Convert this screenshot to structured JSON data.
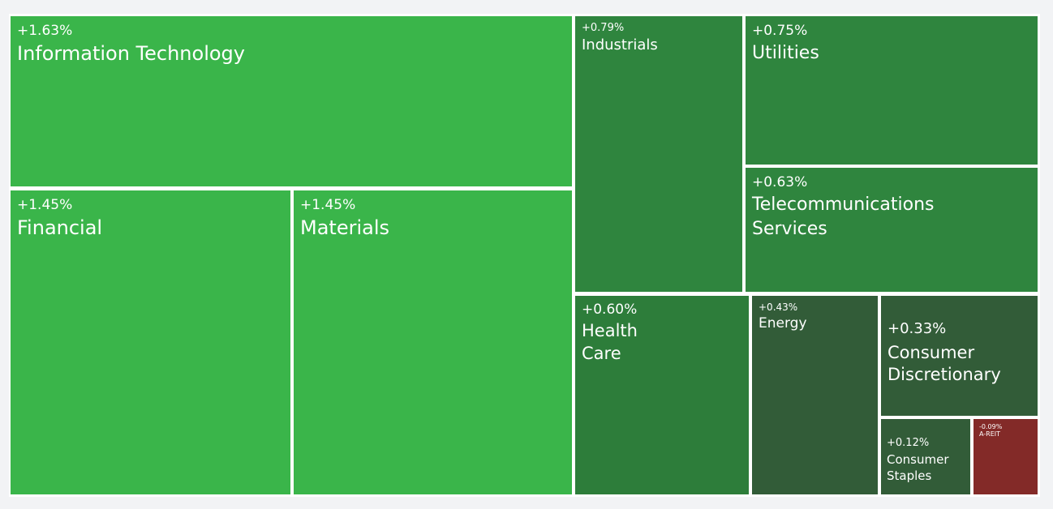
{
  "chart_data": {
    "type": "treemap",
    "sectors": [
      {
        "name": "Information Technology",
        "change": "+1.63%",
        "color": "#3ab54a"
      },
      {
        "name": "Financial",
        "change": "+1.45%",
        "color": "#3ab54a"
      },
      {
        "name": "Materials",
        "change": "+1.45%",
        "color": "#3ab54a"
      },
      {
        "name": "Industrials",
        "change": "+0.79%",
        "color": "#2f853e"
      },
      {
        "name": "Utilities",
        "change": "+0.75%",
        "color": "#2f853e"
      },
      {
        "name": "Telecommunications\nServices",
        "change": "+0.63%",
        "color": "#2f853e"
      },
      {
        "name": "Health\nCare",
        "change": "+0.60%",
        "color": "#2d7d3a"
      },
      {
        "name": "Energy",
        "change": "+0.43%",
        "color": "#325c38"
      },
      {
        "name": "Consumer\nDiscretionary",
        "change": "+0.33%",
        "color": "#325c38"
      },
      {
        "name": "Consumer\nStaples",
        "change": "+0.12%",
        "color": "#325c38"
      },
      {
        "name": "A-REIT",
        "change": "-0.09%",
        "color": "#832a28"
      }
    ]
  }
}
